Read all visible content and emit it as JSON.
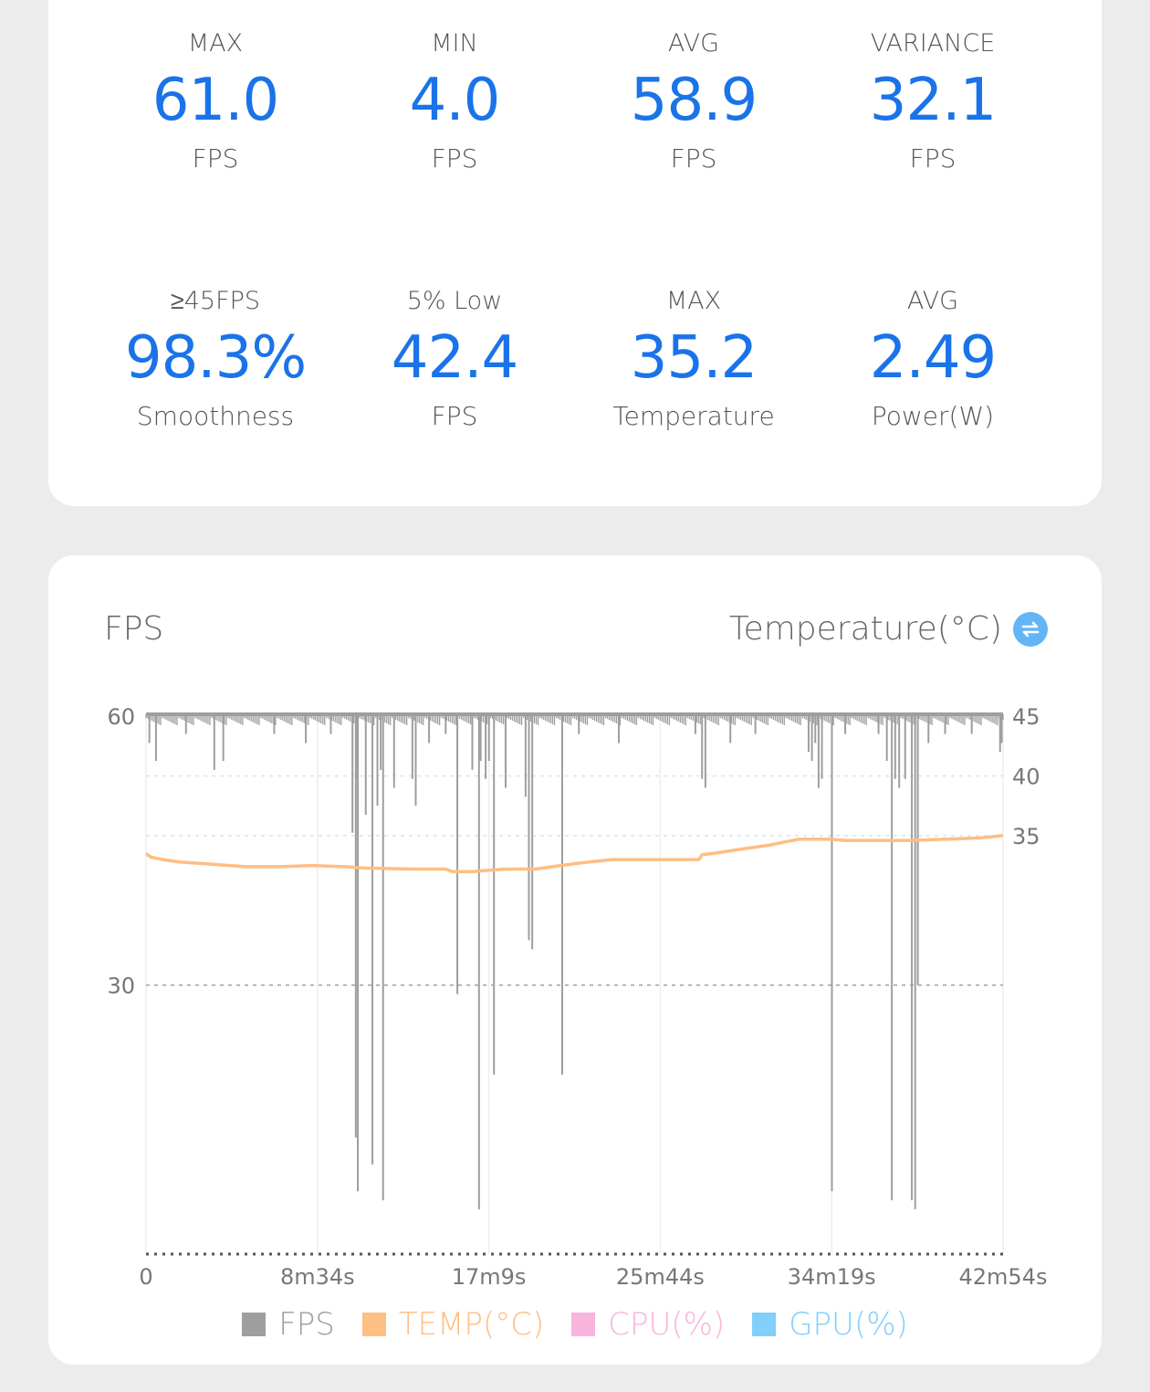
{
  "stats": [
    {
      "label": "MAX",
      "value": "61.0",
      "unit": "FPS"
    },
    {
      "label": "MIN",
      "value": "4.0",
      "unit": "FPS"
    },
    {
      "label": "AVG",
      "value": "58.9",
      "unit": "FPS"
    },
    {
      "label": "VARIANCE",
      "value": "32.1",
      "unit": "FPS"
    },
    {
      "label": "≥45FPS",
      "value": "98.3%",
      "unit": "Smoothness"
    },
    {
      "label": "5% Low",
      "value": "42.4",
      "unit": "FPS"
    },
    {
      "label": "MAX",
      "value": "35.2",
      "unit": "Temperature"
    },
    {
      "label": "AVG",
      "value": "2.49",
      "unit": "Power(W)"
    }
  ],
  "chart_header": {
    "left_title": "FPS",
    "right_title": "Temperature(°C)",
    "toggle_icon": "swap-icon"
  },
  "colors": {
    "fps": "#9e9e9e",
    "temp": "#ffbe82",
    "cpu": "#f8b4dc",
    "gpu": "#82cffa",
    "accent": "#1a73e8"
  },
  "chart_data": {
    "type": "line",
    "title": "",
    "xlabel": "",
    "ylabel_left": "FPS",
    "ylabel_right": "Temperature(°C)",
    "x_ticks": [
      "0",
      "8m34s",
      "17m9s",
      "25m44s",
      "34m19s",
      "42m54s"
    ],
    "x_range_seconds": [
      0,
      2574
    ],
    "y_left_ticks": [
      60,
      30
    ],
    "y_left_range": [
      0,
      60
    ],
    "y_right_ticks": [
      45,
      40,
      35
    ],
    "y_right_range": [
      0,
      45
    ],
    "grid": true,
    "legend": [
      {
        "name": "FPS",
        "color": "#9e9e9e"
      },
      {
        "name": "TEMP(°C)",
        "color": "#ffbe82"
      },
      {
        "name": "CPU(%)",
        "color": "#f8b4dc"
      },
      {
        "name": "GPU(%)",
        "color": "#82cffa"
      }
    ],
    "legend_position": "bottom",
    "series": [
      {
        "name": "FPS",
        "baseline": 60,
        "dips": [
          [
            10,
            57
          ],
          [
            30,
            55
          ],
          [
            120,
            58
          ],
          [
            205,
            54
          ],
          [
            232,
            55
          ],
          [
            385,
            58
          ],
          [
            480,
            57
          ],
          [
            555,
            58
          ],
          [
            620,
            47
          ],
          [
            630,
            13
          ],
          [
            635,
            53
          ],
          [
            636,
            7
          ],
          [
            660,
            49
          ],
          [
            680,
            10
          ],
          [
            695,
            50
          ],
          [
            705,
            54
          ],
          [
            712,
            6
          ],
          [
            745,
            52
          ],
          [
            800,
            53
          ],
          [
            810,
            50
          ],
          [
            850,
            57
          ],
          [
            900,
            58
          ],
          [
            935,
            29
          ],
          [
            980,
            54
          ],
          [
            1000,
            5
          ],
          [
            1005,
            55
          ],
          [
            1020,
            53
          ],
          [
            1030,
            55
          ],
          [
            1045,
            20
          ],
          [
            1080,
            52
          ],
          [
            1140,
            51
          ],
          [
            1150,
            35
          ],
          [
            1160,
            34
          ],
          [
            1250,
            20
          ],
          [
            1300,
            58
          ],
          [
            1420,
            57
          ],
          [
            1650,
            58
          ],
          [
            1670,
            53
          ],
          [
            1680,
            52
          ],
          [
            1755,
            57
          ],
          [
            1830,
            58
          ],
          [
            1990,
            56
          ],
          [
            2000,
            55
          ],
          [
            2010,
            57
          ],
          [
            2020,
            52
          ],
          [
            2030,
            53
          ],
          [
            2060,
            7
          ],
          [
            2100,
            58
          ],
          [
            2200,
            58
          ],
          [
            2225,
            55
          ],
          [
            2240,
            6
          ],
          [
            2250,
            53
          ],
          [
            2262,
            52
          ],
          [
            2280,
            53
          ],
          [
            2300,
            6
          ],
          [
            2310,
            5
          ],
          [
            2318,
            30
          ],
          [
            2350,
            57
          ],
          [
            2400,
            58
          ],
          [
            2480,
            58
          ],
          [
            2565,
            56
          ],
          [
            2570,
            57
          ]
        ]
      },
      {
        "name": "TEMP(°C)",
        "values": [
          [
            0,
            33.5
          ],
          [
            15,
            33.2
          ],
          [
            50,
            33.0
          ],
          [
            100,
            32.8
          ],
          [
            200,
            32.6
          ],
          [
            300,
            32.4
          ],
          [
            400,
            32.4
          ],
          [
            500,
            32.5
          ],
          [
            600,
            32.4
          ],
          [
            650,
            32.3
          ],
          [
            800,
            32.2
          ],
          [
            900,
            32.2
          ],
          [
            920,
            32.0
          ],
          [
            980,
            32.0
          ],
          [
            1030,
            32.1
          ],
          [
            1080,
            32.2
          ],
          [
            1170,
            32.2
          ],
          [
            1220,
            32.4
          ],
          [
            1300,
            32.7
          ],
          [
            1400,
            33.0
          ],
          [
            1500,
            33.0
          ],
          [
            1600,
            33.0
          ],
          [
            1660,
            33.0
          ],
          [
            1670,
            33.4
          ],
          [
            1700,
            33.5
          ],
          [
            1770,
            33.8
          ],
          [
            1870,
            34.2
          ],
          [
            1960,
            34.7
          ],
          [
            2050,
            34.7
          ],
          [
            2100,
            34.6
          ],
          [
            2200,
            34.6
          ],
          [
            2300,
            34.6
          ],
          [
            2400,
            34.7
          ],
          [
            2500,
            34.8
          ],
          [
            2574,
            35.0
          ]
        ]
      },
      {
        "name": "CPU(%)",
        "values": []
      },
      {
        "name": "GPU(%)",
        "values": []
      }
    ]
  }
}
